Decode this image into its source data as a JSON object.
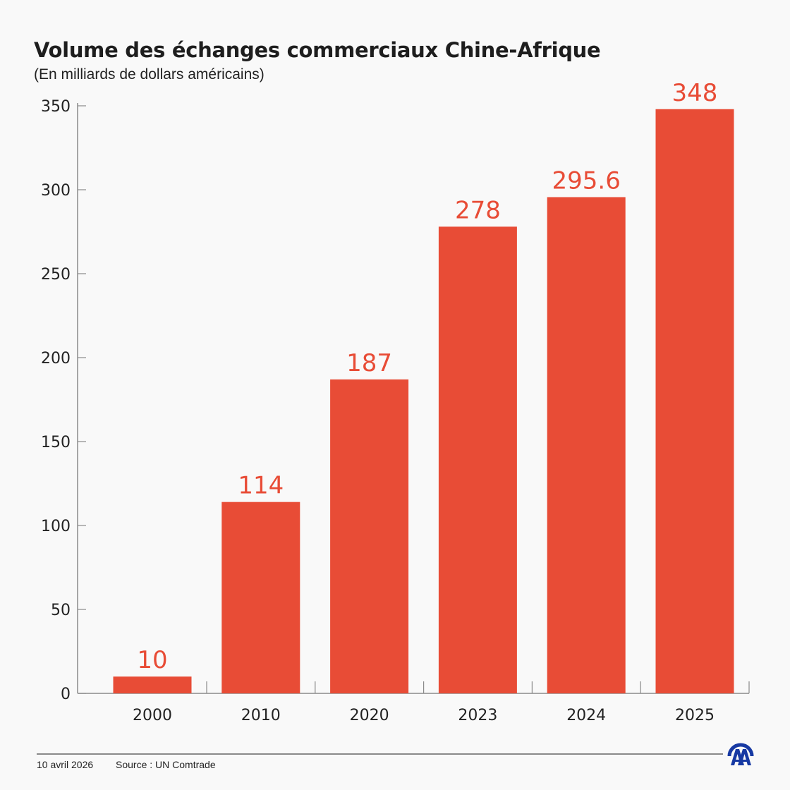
{
  "chart_data": {
    "type": "bar",
    "title": "Volume des échanges commerciaux Chine-Afrique",
    "subtitle": "(En milliards de dollars américains)",
    "categories": [
      "2000",
      "2010",
      "2020",
      "2023",
      "2024",
      "2025"
    ],
    "values": [
      10,
      114,
      187,
      278,
      295.6,
      348
    ],
    "value_labels": [
      "10",
      "114",
      "187",
      "278",
      "295.6",
      "348"
    ],
    "ylim": [
      0,
      350
    ],
    "yticks": [
      0,
      50,
      100,
      150,
      200,
      250,
      300,
      350
    ],
    "grid": false,
    "bar_color": "#e84c36",
    "label_color": "#e84c36"
  },
  "footer": {
    "date": "10 avril 2026",
    "source": "Source : UN Comtrade",
    "logo_text": "AA",
    "logo_color": "#1739a3"
  }
}
